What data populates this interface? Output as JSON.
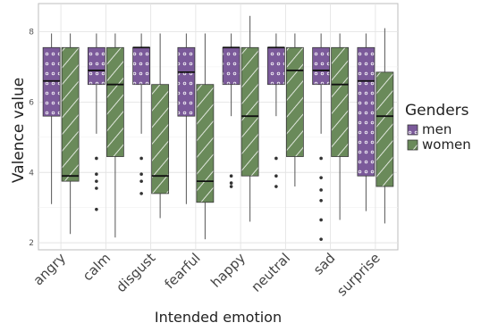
{
  "chart_data": {
    "type": "boxplot",
    "xlabel": "Intended emotion",
    "ylabel": "Valence value",
    "ylim": [
      1.8,
      8.8
    ],
    "yticks": [
      2,
      4,
      6,
      8
    ],
    "grid": true,
    "legend_title": "Genders",
    "legend_position": "right",
    "categories": [
      "angry",
      "calm",
      "disgust",
      "fearful",
      "happy",
      "neutral",
      "sad",
      "surprise"
    ],
    "series": [
      {
        "name": "men",
        "color": "#7b5a9a",
        "pattern": "dots",
        "boxes": [
          {
            "q1": 5.6,
            "median": 6.6,
            "q3": 7.55,
            "lower": 3.1,
            "upper": 7.95,
            "outliers": []
          },
          {
            "q1": 6.5,
            "median": 6.9,
            "q3": 7.55,
            "lower": 5.1,
            "upper": 7.95,
            "outliers": [
              4.4,
              3.95,
              3.75,
              3.55,
              2.95
            ]
          },
          {
            "q1": 6.5,
            "median": 7.55,
            "q3": 7.55,
            "lower": 5.1,
            "upper": 7.95,
            "outliers": [
              4.4,
              3.95,
              3.75,
              3.4
            ]
          },
          {
            "q1": 5.6,
            "median": 6.85,
            "q3": 7.55,
            "lower": 3.1,
            "upper": 7.95,
            "outliers": []
          },
          {
            "q1": 6.5,
            "median": 7.55,
            "q3": 7.55,
            "lower": 5.6,
            "upper": 7.95,
            "outliers": [
              3.9,
              3.7,
              3.6
            ]
          },
          {
            "q1": 6.5,
            "median": 7.55,
            "q3": 7.55,
            "lower": 5.6,
            "upper": 7.95,
            "outliers": [
              4.4,
              3.9,
              3.6
            ]
          },
          {
            "q1": 6.5,
            "median": 6.9,
            "q3": 7.55,
            "lower": 5.1,
            "upper": 7.95,
            "outliers": [
              4.4,
              3.85,
              3.5,
              3.2,
              2.65,
              2.1
            ]
          },
          {
            "q1": 3.9,
            "median": 6.6,
            "q3": 7.55,
            "lower": 2.9,
            "upper": 7.95,
            "outliers": []
          }
        ]
      },
      {
        "name": "women",
        "color": "#6a8a5a",
        "pattern": "diagonal",
        "boxes": [
          {
            "q1": 3.75,
            "median": 3.9,
            "q3": 7.55,
            "lower": 2.25,
            "upper": 7.95,
            "outliers": []
          },
          {
            "q1": 4.45,
            "median": 6.5,
            "q3": 7.55,
            "lower": 2.15,
            "upper": 7.95,
            "outliers": []
          },
          {
            "q1": 3.4,
            "median": 3.9,
            "q3": 6.5,
            "lower": 2.7,
            "upper": 7.95,
            "outliers": []
          },
          {
            "q1": 3.15,
            "median": 3.75,
            "q3": 6.5,
            "lower": 2.1,
            "upper": 7.95,
            "outliers": []
          },
          {
            "q1": 3.9,
            "median": 5.6,
            "q3": 7.55,
            "lower": 2.6,
            "upper": 8.45,
            "outliers": []
          },
          {
            "q1": 4.45,
            "median": 6.9,
            "q3": 7.55,
            "lower": 3.6,
            "upper": 7.95,
            "outliers": []
          },
          {
            "q1": 4.45,
            "median": 6.5,
            "q3": 7.55,
            "lower": 2.65,
            "upper": 7.95,
            "outliers": []
          },
          {
            "q1": 3.6,
            "median": 5.6,
            "q3": 6.85,
            "lower": 2.55,
            "upper": 8.1,
            "outliers": []
          }
        ]
      }
    ]
  }
}
